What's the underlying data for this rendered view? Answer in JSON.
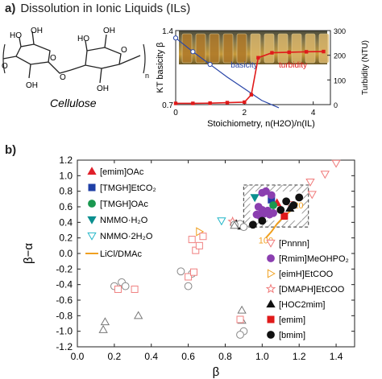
{
  "header": {
    "panel_a": "a)",
    "panel_a_title": "Dissolution in Ionic Liquids (ILs)",
    "panel_b": "b)",
    "cellulose_label": "Cellulose",
    "cellulose_sub": "n",
    "oh_label": "OH",
    "o_label": "O",
    "ho_label": "HO"
  },
  "chart_data": [
    {
      "type": "line",
      "xlabel": "Stoichiometry, n(H2O)/n(IL)",
      "ylabel": "KT basicity β",
      "ylabel_right": "Turbidity (NTU)",
      "xlim": [
        0,
        4.5
      ],
      "ylim": [
        0.7,
        1.4
      ],
      "ylim_right": [
        0,
        300
      ],
      "x_ticks": [
        0,
        2,
        4
      ],
      "y_ticks": [
        0.7,
        1.4
      ],
      "y_ticks_right": [
        0,
        100,
        200,
        300
      ],
      "series": [
        {
          "name": "basicity",
          "color": "#2845a8",
          "x": [
            0,
            0.5,
            1,
            1.5,
            2,
            2.5,
            3
          ],
          "y": [
            1.33,
            1.2,
            1.08,
            0.96,
            0.85,
            0.74,
            0.67
          ]
        },
        {
          "name": "turbidity",
          "color": "#e01a1a",
          "x": [
            0,
            0.5,
            1,
            1.5,
            2,
            2.2,
            2.4,
            2.8,
            3.3,
            3.8,
            4.3
          ],
          "y": [
            5,
            5,
            6,
            8,
            10,
            40,
            190,
            210,
            212,
            214,
            215
          ]
        }
      ]
    },
    {
      "type": "scatter",
      "xlabel": "β",
      "ylabel": "β−α",
      "xlim": [
        0,
        1.5
      ],
      "ylim": [
        -1.2,
        1.2
      ],
      "x_ticks": [
        0.0,
        0.2,
        0.4,
        0.6,
        0.8,
        1.0,
        1.2,
        1.4
      ],
      "y_ticks": [
        -1.2,
        -1.0,
        -0.8,
        -0.6,
        -0.4,
        -0.2,
        0.0,
        0.2,
        0.4,
        0.6,
        0.8,
        1.0,
        1.2
      ],
      "annotations": [
        "20",
        "100"
      ],
      "series": [
        {
          "name": "[emim]OAc",
          "color": "#e0202a",
          "marker": "triangle-up",
          "filled": true,
          "points": [
            [
              1.08,
              0.65
            ]
          ]
        },
        {
          "name": "[TMGH]EtCO2",
          "color": "#1f3fa6",
          "marker": "square",
          "filled": true,
          "points": [
            [
              1.05,
              0.69
            ]
          ]
        },
        {
          "name": "[TMGH]OAc",
          "color": "#1a9850",
          "marker": "circle",
          "filled": true,
          "points": [
            [
              1.06,
              0.62
            ]
          ]
        },
        {
          "name": "NMMO·H2O",
          "color": "#0b8f8f",
          "marker": "triangle-down",
          "filled": true,
          "points": [
            [
              0.96,
              0.72
            ]
          ]
        },
        {
          "name": "NMMO·2H2O",
          "color": "#22b6c8",
          "marker": "triangle-down",
          "filled": false,
          "points": [
            [
              0.78,
              0.42
            ]
          ]
        },
        {
          "name": "[Pnnnn]",
          "color": "#f07a7a",
          "marker": "triangle-down",
          "filled": false,
          "points": [
            [
              1.26,
              0.92
            ],
            [
              1.34,
              1.02
            ],
            [
              1.4,
              1.16
            ],
            [
              1.27,
              0.76
            ],
            [
              1.15,
              0.63
            ]
          ]
        },
        {
          "name": "[Rmim]MeOHPO2",
          "color": "#8b3fb0",
          "marker": "circle",
          "filled": true,
          "points": [
            [
              1.0,
              0.78
            ],
            [
              1.02,
              0.8
            ],
            [
              1.05,
              0.75
            ],
            [
              0.98,
              0.6
            ],
            [
              1.0,
              0.56
            ],
            [
              1.03,
              0.55
            ],
            [
              0.97,
              0.5
            ],
            [
              1.01,
              0.51
            ],
            [
              0.99,
              0.48
            ],
            [
              1.04,
              0.5
            ],
            [
              1.06,
              0.52
            ]
          ]
        },
        {
          "name": "[eimH]EtCOO",
          "color": "#f0a020",
          "marker": "triangle-right",
          "filled": false,
          "points": [
            [
              0.66,
              0.28
            ]
          ]
        },
        {
          "name": "[DMAPH]EtCOO",
          "color": "#f07a7a",
          "marker": "star",
          "filled": false,
          "points": [
            [
              0.84,
              0.41
            ]
          ]
        },
        {
          "name": "[HOC2mim]",
          "color": "#111111",
          "marker": "triangle-up",
          "filled": true,
          "points": [
            [
              0.89,
              0.35
            ],
            [
              0.86,
              0.38
            ],
            [
              1.15,
              0.58
            ]
          ]
        },
        {
          "name": "[emim]",
          "color": "#e01a1a",
          "marker": "square",
          "filled": true,
          "points": [
            [
              1.12,
              0.48
            ]
          ]
        },
        {
          "name": "[bmim]",
          "color": "#111111",
          "marker": "circle",
          "filled": true,
          "points": [
            [
              1.1,
              0.56
            ],
            [
              1.17,
              0.62
            ],
            [
              1.2,
              0.72
            ],
            [
              1.13,
              0.67
            ],
            [
              0.95,
              0.37
            ],
            [
              1.0,
              0.42
            ]
          ]
        },
        {
          "name": "gray-circles",
          "color": "#888888",
          "marker": "circle",
          "filled": false,
          "points": [
            [
              0.2,
              -0.42
            ],
            [
              0.24,
              -0.37
            ],
            [
              0.26,
              -0.42
            ],
            [
              0.56,
              -0.23
            ],
            [
              0.62,
              -0.26
            ],
            [
              0.6,
              -0.42
            ],
            [
              0.9,
              -1.0
            ],
            [
              0.88,
              0.38
            ],
            [
              0.9,
              0.34
            ],
            [
              0.85,
              0.37
            ]
          ]
        },
        {
          "name": "gray-triangles",
          "color": "#777777",
          "marker": "triangle-up",
          "filled": false,
          "points": [
            [
              0.15,
              -0.88
            ],
            [
              0.14,
              -0.98
            ],
            [
              0.33,
              -0.8
            ],
            [
              0.89,
              -0.73
            ],
            [
              0.89,
              -0.86
            ],
            [
              0.85,
              0.36
            ]
          ]
        },
        {
          "name": "pink-squares",
          "color": "#f08080",
          "marker": "square",
          "filled": false,
          "points": [
            [
              0.22,
              -0.46
            ],
            [
              0.31,
              -0.46
            ],
            [
              0.64,
              0.04
            ],
            [
              0.66,
              0.1
            ],
            [
              0.62,
              0.18
            ],
            [
              0.68,
              0.22
            ],
            [
              0.6,
              -0.3
            ],
            [
              0.63,
              -0.24
            ]
          ]
        }
      ],
      "orange_line": {
        "name": "LiCl/DMAc",
        "color": "#f0a020",
        "x": [
          1.02,
          1.05,
          1.08,
          1.12,
          1.16
        ],
        "y": [
          0.2,
          0.28,
          0.38,
          0.48,
          0.56
        ]
      }
    }
  ],
  "legend_left": [
    "[emim]OAc",
    "[TMGH]EtCO₂",
    "[TMGH]OAc",
    "NMMO·H₂O",
    "NMMO·2H₂O",
    "LiCl/DMAc"
  ],
  "legend_right": [
    "[Pnnnn]",
    "[Rmim]MeOHPO₂",
    "[eimH]EtCOO",
    "[DMAPH]EtCOO",
    "[HOC2mim]",
    "[emim]",
    "[bmim]"
  ]
}
